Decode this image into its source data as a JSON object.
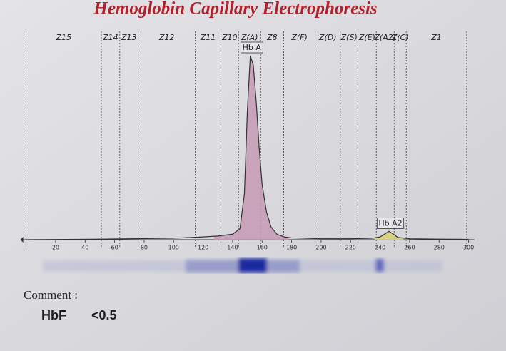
{
  "chart_data": {
    "type": "line",
    "title": "Hemoglobin Capillary Electrophoresis",
    "x": [
      0,
      50,
      100,
      120,
      130,
      140,
      145,
      148,
      150,
      152,
      154,
      156,
      158,
      160,
      163,
      166,
      170,
      175,
      180,
      200,
      220,
      235,
      240,
      243,
      246,
      249,
      252,
      260,
      280,
      300
    ],
    "y": [
      0,
      0.3,
      0.8,
      1.5,
      2,
      3,
      6,
      25,
      70,
      100,
      95,
      75,
      50,
      30,
      15,
      7,
      3,
      1.5,
      1,
      0.5,
      0.5,
      0.8,
      1.5,
      3,
      4.5,
      3,
      1.2,
      0.5,
      0.3,
      0.2
    ],
    "color": "#333333",
    "xlim": [
      0,
      300
    ],
    "ylim": [
      0,
      100
    ],
    "xticks": [
      20,
      40,
      60,
      80,
      100,
      120,
      140,
      160,
      180,
      200,
      220,
      240,
      260,
      280,
      300
    ],
    "zones": [
      "Z15",
      "Z14",
      "Z13",
      "Z12",
      "Z11",
      "Z10",
      "Z(A)",
      "Z8",
      "Z(F)",
      "Z(D)",
      "Z(S)",
      "Z(E)",
      "Z(A2)",
      "Z(C)",
      "Z1"
    ],
    "zone_bounds": [
      0,
      51,
      63.5,
      76,
      114.7,
      132,
      144,
      159,
      174.6,
      196,
      213,
      225,
      237.4,
      249.5,
      257.7,
      298.7
    ],
    "annotations": [
      {
        "text": "Hb A",
        "x": 152
      },
      {
        "text": "Hb A2",
        "x": 246
      }
    ],
    "comment": {
      "label": "Comment :",
      "name": "HbF",
      "value": "<0.5"
    }
  }
}
